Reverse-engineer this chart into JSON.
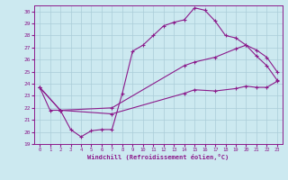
{
  "xlabel": "Windchill (Refroidissement éolien,°C)",
  "background_color": "#cce9f0",
  "grid_color": "#aacdd8",
  "line_color": "#8b1a8b",
  "xlim": [
    -0.5,
    23.5
  ],
  "ylim": [
    19,
    30.5
  ],
  "x_ticks": [
    0,
    1,
    2,
    3,
    4,
    5,
    6,
    7,
    8,
    9,
    10,
    11,
    12,
    13,
    14,
    15,
    16,
    17,
    18,
    19,
    20,
    21,
    22,
    23
  ],
  "y_ticks": [
    19,
    20,
    21,
    22,
    23,
    24,
    25,
    26,
    27,
    28,
    29,
    30
  ],
  "line1_x": [
    0,
    1,
    2,
    3,
    4,
    5,
    6,
    7,
    8,
    9,
    10,
    11,
    12,
    13,
    14,
    15,
    16,
    17,
    18,
    19,
    20,
    21,
    22,
    23
  ],
  "line1_y": [
    23.7,
    21.8,
    21.8,
    20.2,
    19.6,
    20.1,
    20.2,
    20.2,
    23.2,
    26.7,
    27.2,
    28.0,
    28.8,
    29.1,
    29.3,
    30.3,
    30.1,
    29.2,
    28.0,
    27.8,
    27.2,
    26.3,
    25.5,
    24.3
  ],
  "line2_x": [
    0,
    2,
    7,
    14,
    15,
    17,
    19,
    20,
    21,
    22,
    23
  ],
  "line2_y": [
    23.7,
    21.8,
    22.0,
    25.5,
    25.8,
    26.2,
    26.9,
    27.2,
    26.8,
    26.2,
    25.0
  ],
  "line3_x": [
    0,
    2,
    7,
    14,
    15,
    17,
    19,
    20,
    21,
    22,
    23
  ],
  "line3_y": [
    23.7,
    21.8,
    21.5,
    23.2,
    23.5,
    23.4,
    23.6,
    23.8,
    23.7,
    23.7,
    24.2
  ]
}
